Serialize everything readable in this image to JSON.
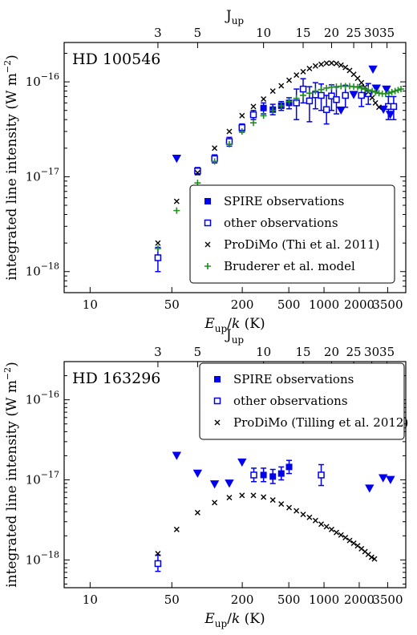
{
  "chart_data": [
    {
      "type": "scatter",
      "title": "HD 100546",
      "xlabel": "E_up/k (K)",
      "ylabel": "integrated line intensity (W m^-2)",
      "x_scale": "log",
      "y_scale": "log",
      "xlim": [
        6,
        5000
      ],
      "ylim": [
        6e-19,
        2.6e-16
      ],
      "x_ticks": [
        10,
        50,
        200,
        500,
        1000,
        2000,
        3500
      ],
      "y_ticks": [
        1e-18,
        1e-17,
        1e-16
      ],
      "y_tick_labels": [
        "10^-18",
        "10^-17",
        "10^-16"
      ],
      "top_axis_label": "J_up",
      "top_axis_ticks": [
        3,
        5,
        10,
        15,
        20,
        25,
        30,
        35
      ],
      "legend_position": "lower-right",
      "colors": {
        "spire": "#0000ee",
        "prodimo": "#000000",
        "bruderer": "#228b22"
      },
      "series": [
        {
          "name": "SPIRE observations",
          "marker": "filled-square",
          "color": "#0000ee",
          "points": [
            [
              304,
              5.3e-17,
              4.6e-17,
              6e-17
            ],
            [
              365,
              5.1e-17,
              4.5e-17,
              5.8e-17
            ],
            [
              431,
              5.6e-17,
              5e-17,
              6.2e-17
            ],
            [
              503,
              6e-17,
              5.2e-17,
              6.8e-17
            ]
          ]
        },
        {
          "name": "other observations",
          "marker": "open-square",
          "color": "#0000ee",
          "points": [
            [
              38,
              1.4e-18,
              1e-18,
              1.8e-18
            ],
            [
              83,
              1.15e-17,
              1.05e-17,
              1.25e-17
            ],
            [
              116,
              1.55e-17,
              1.4e-17,
              1.7e-17
            ],
            [
              155,
              2.35e-17,
              2.1e-17,
              2.6e-17
            ],
            [
              199,
              3.3e-17,
              2.95e-17,
              3.6e-17
            ],
            [
              249,
              4.5e-17,
              4e-17,
              5e-17
            ],
            [
              581,
              6e-17,
              4e-17,
              8.4e-17
            ],
            [
              663,
              8.4e-17,
              6e-17,
              1.08e-16
            ],
            [
              751,
              6.3e-17,
              3.8e-17,
              8.9e-17
            ],
            [
              845,
              7.3e-17,
              5.2e-17,
              9.8e-17
            ],
            [
              946,
              7.2e-17,
              5e-17,
              9.5e-17
            ],
            [
              1050,
              5.1e-17,
              3.6e-17,
              7.2e-17
            ],
            [
              1160,
              7.1e-17,
              5e-17,
              9.3e-17
            ],
            [
              1276,
              6.5e-17,
              4.6e-17,
              8.8e-17
            ],
            [
              1523,
              7.2e-17,
              5.4e-17,
              9.2e-17
            ],
            [
              2089,
              7.2e-17,
              5.5e-17,
              9e-17
            ],
            [
              2390,
              7.5e-17,
              5.8e-17,
              9.6e-17
            ],
            [
              3550,
              5.5e-17,
              4e-17,
              7e-17
            ],
            [
              3940,
              5.5e-17,
              4e-17,
              7e-17
            ]
          ]
        },
        {
          "name": "upper limits",
          "marker": "triangle-down",
          "color": "#0000ee",
          "legend": false,
          "points": [
            [
              55,
              1.55e-17
            ],
            [
              1397,
              5e-17
            ],
            [
              1794,
              7.3e-17
            ],
            [
              2620,
              1.35e-16
            ],
            [
              2800,
              8.5e-17
            ],
            [
              3220,
              5.1e-17
            ],
            [
              3420,
              8.3e-17
            ],
            [
              3680,
              4.5e-17
            ]
          ]
        },
        {
          "name": "ProDiMo (Thi et al. 2011)",
          "marker": "cross",
          "color": "#000000",
          "points": [
            [
              38,
              2e-18
            ],
            [
              55,
              5.5e-18
            ],
            [
              83,
              1.1e-17
            ],
            [
              116,
              2e-17
            ],
            [
              155,
              3e-17
            ],
            [
              199,
              4.4e-17
            ],
            [
              249,
              5.5e-17
            ],
            [
              304,
              6.6e-17
            ],
            [
              365,
              8e-17
            ],
            [
              431,
              9.1e-17
            ],
            [
              503,
              1.04e-16
            ],
            [
              581,
              1.18e-16
            ],
            [
              663,
              1.28e-16
            ],
            [
              751,
              1.38e-16
            ],
            [
              845,
              1.47e-16
            ],
            [
              946,
              1.53e-16
            ],
            [
              1050,
              1.57e-16
            ],
            [
              1160,
              1.58e-16
            ],
            [
              1276,
              1.56e-16
            ],
            [
              1397,
              1.5e-16
            ],
            [
              1523,
              1.42e-16
            ],
            [
              1656,
              1.32e-16
            ],
            [
              1794,
              1.2e-16
            ],
            [
              1938,
              1.09e-16
            ],
            [
              2089,
              9.8e-17
            ],
            [
              2240,
              8.8e-17
            ],
            [
              2390,
              7.8e-17
            ],
            [
              2580,
              6.8e-17
            ],
            [
              2750,
              6e-17
            ],
            [
              2950,
              5.4e-17
            ]
          ]
        },
        {
          "name": "Bruderer et al. model",
          "marker": "plus",
          "color": "#228b22",
          "points": [
            [
              38,
              1.75e-18
            ],
            [
              55,
              4.4e-18
            ],
            [
              83,
              8.6e-18
            ],
            [
              116,
              1.45e-17
            ],
            [
              155,
              2.2e-17
            ],
            [
              199,
              3e-17
            ],
            [
              249,
              3.7e-17
            ],
            [
              304,
              4.4e-17
            ],
            [
              365,
              5e-17
            ],
            [
              431,
              5.6e-17
            ],
            [
              503,
              6.2e-17
            ],
            [
              581,
              6.7e-17
            ],
            [
              663,
              7.2e-17
            ],
            [
              751,
              7.6e-17
            ],
            [
              845,
              8e-17
            ],
            [
              946,
              8.3e-17
            ],
            [
              1050,
              8.6e-17
            ],
            [
              1160,
              8.8e-17
            ],
            [
              1276,
              8.9e-17
            ],
            [
              1397,
              9e-17
            ],
            [
              1523,
              9e-17
            ],
            [
              1656,
              9e-17
            ],
            [
              1794,
              8.9e-17
            ],
            [
              1938,
              8.8e-17
            ],
            [
              2089,
              8.6e-17
            ],
            [
              2240,
              8.4e-17
            ],
            [
              2390,
              8.2e-17
            ],
            [
              2580,
              8e-17
            ],
            [
              2750,
              7.8e-17
            ],
            [
              2950,
              7.6e-17
            ],
            [
              3150,
              7.5e-17
            ],
            [
              3360,
              7.5e-17
            ],
            [
              3580,
              7.6e-17
            ],
            [
              3800,
              7.8e-17
            ],
            [
              4050,
              8e-17
            ],
            [
              4300,
              8.2e-17
            ],
            [
              4550,
              8.4e-17
            ]
          ]
        }
      ]
    },
    {
      "type": "scatter",
      "title": "HD 163296",
      "xlabel": "E_up/k (K)",
      "ylabel": "integrated line intensity (W m^-2)",
      "x_scale": "log",
      "y_scale": "log",
      "xlim": [
        6,
        5000
      ],
      "ylim": [
        4.5e-19,
        3e-16
      ],
      "x_ticks": [
        10,
        50,
        200,
        500,
        1000,
        2000,
        3500
      ],
      "y_ticks": [
        1e-18,
        1e-17,
        1e-16
      ],
      "y_tick_labels": [
        "10^-18",
        "10^-17",
        "10^-16"
      ],
      "top_axis_label": "J_up",
      "top_axis_ticks": [
        3,
        5,
        10,
        15,
        20,
        25,
        30,
        35
      ],
      "legend_position": "upper-right",
      "colors": {
        "spire": "#0000ee",
        "prodimo": "#000000"
      },
      "series": [
        {
          "name": "SPIRE observations",
          "marker": "filled-square",
          "color": "#0000ee",
          "points": [
            [
              304,
              1.15e-17,
              9.5e-18,
              1.4e-17
            ],
            [
              365,
              1.1e-17,
              9e-18,
              1.35e-17
            ],
            [
              431,
              1.2e-17,
              1e-17,
              1.45e-17
            ],
            [
              503,
              1.45e-17,
              1.2e-17,
              1.75e-17
            ]
          ]
        },
        {
          "name": "other observations",
          "marker": "open-square",
          "color": "#0000ee",
          "points": [
            [
              38,
              9e-19,
              7.2e-19,
              1.15e-18
            ],
            [
              251,
              1.15e-17,
              9.5e-18,
              1.4e-17
            ],
            [
              946,
              1.15e-17,
              8.5e-18,
              1.55e-17
            ]
          ]
        },
        {
          "name": "upper limits",
          "marker": "triangle-down",
          "color": "#0000ee",
          "legend": false,
          "points": [
            [
              55,
              2e-17
            ],
            [
              83,
              1.2e-17
            ],
            [
              116,
              8.8e-18
            ],
            [
              155,
              9e-18
            ],
            [
              199,
              1.65e-17
            ],
            [
              2450,
              7.8e-18
            ],
            [
              3200,
              1.05e-17
            ],
            [
              3700,
              1e-17
            ]
          ]
        },
        {
          "name": "ProDiMo (Tilling et al. 2012)",
          "marker": "cross",
          "color": "#000000",
          "points": [
            [
              38,
              1.2e-18
            ],
            [
              55,
              2.4e-18
            ],
            [
              83,
              3.9e-18
            ],
            [
              116,
              5.2e-18
            ],
            [
              155,
              6e-18
            ],
            [
              199,
              6.4e-18
            ],
            [
              249,
              6.4e-18
            ],
            [
              304,
              6.1e-18
            ],
            [
              365,
              5.6e-18
            ],
            [
              431,
              5e-18
            ],
            [
              503,
              4.5e-18
            ],
            [
              581,
              4.1e-18
            ],
            [
              663,
              3.7e-18
            ],
            [
              751,
              3.4e-18
            ],
            [
              845,
              3.1e-18
            ],
            [
              946,
              2.8e-18
            ],
            [
              1050,
              2.6e-18
            ],
            [
              1160,
              2.4e-18
            ],
            [
              1276,
              2.2e-18
            ],
            [
              1397,
              2.05e-18
            ],
            [
              1523,
              1.9e-18
            ],
            [
              1656,
              1.75e-18
            ],
            [
              1794,
              1.62e-18
            ],
            [
              1938,
              1.5e-18
            ],
            [
              2089,
              1.38e-18
            ],
            [
              2240,
              1.27e-18
            ],
            [
              2390,
              1.17e-18
            ],
            [
              2550,
              1.08e-18
            ],
            [
              2700,
              1.03e-18
            ]
          ]
        }
      ]
    }
  ]
}
